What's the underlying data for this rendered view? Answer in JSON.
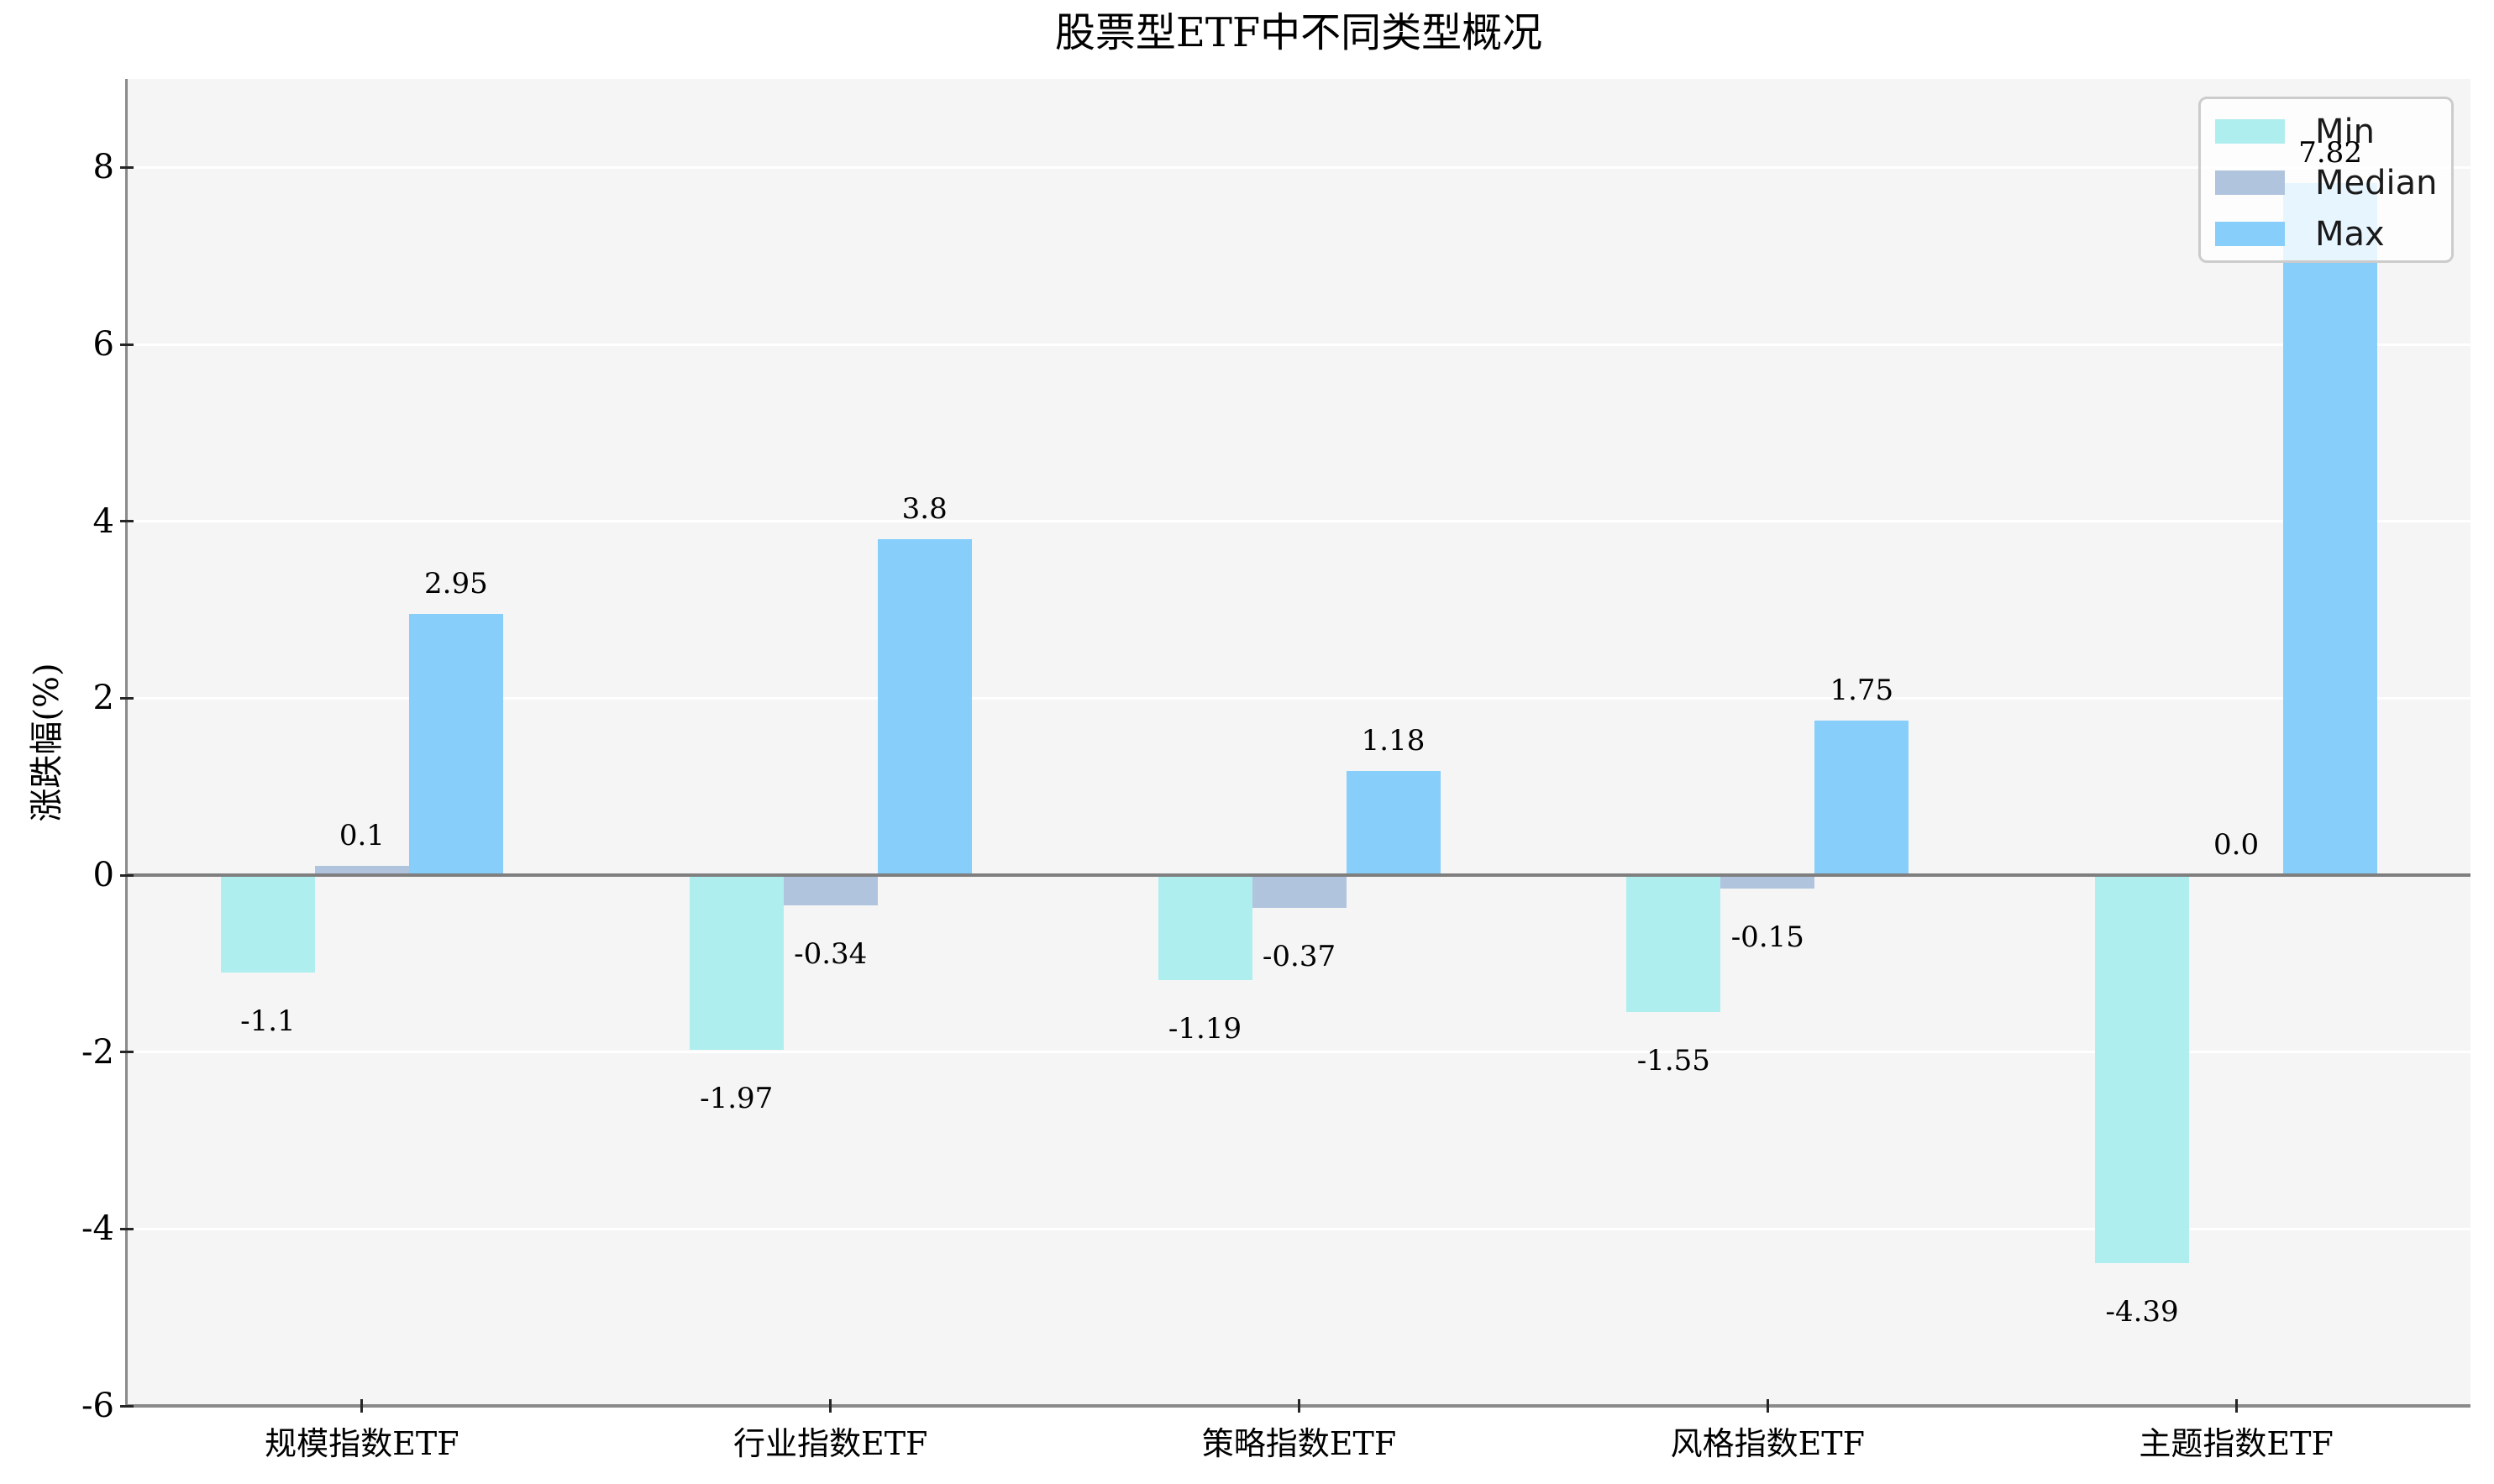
{
  "title": "股票型ETF中不同类型概况",
  "y_axis": {
    "label": "涨跌幅(%)",
    "tick_labels": [
      "8",
      "6",
      "4",
      "2",
      "0",
      "-2",
      "-4",
      "-6"
    ]
  },
  "legend": {
    "items": [
      {
        "label": "Min",
        "color": "#AFEEEE"
      },
      {
        "label": "Median",
        "color": "#B0C4DE"
      },
      {
        "label": "Max",
        "color": "#87CEFA"
      }
    ]
  },
  "colors": {
    "plot_background": "#F5F5F5",
    "gridline": "#FFFFFF",
    "zero_line": "#7F7F7F",
    "spine": "#8A8A8A",
    "tick_mark": "#262626",
    "text": "#000000",
    "legend_border": "#CCCCCC",
    "legend_background": "rgba(255,255,255,0.8)"
  },
  "chart_data": {
    "type": "bar",
    "categories": [
      "规模指数ETF",
      "行业指数ETF",
      "策略指数ETF",
      "风格指数ETF",
      "主题指数ETF"
    ],
    "series": [
      {
        "name": "Min",
        "color": "#AFEEEE",
        "values": [
          -1.1,
          -1.97,
          -1.19,
          -1.55,
          -4.39
        ],
        "labels": [
          "-1.1",
          "-1.97",
          "-1.19",
          "-1.55",
          "-4.39"
        ]
      },
      {
        "name": "Median",
        "color": "#B0C4DE",
        "values": [
          0.1,
          -0.34,
          -0.37,
          -0.15,
          0.0
        ],
        "labels": [
          "0.1",
          "-0.34",
          "-0.37",
          "-0.15",
          "0.0"
        ]
      },
      {
        "name": "Max",
        "color": "#87CEFA",
        "values": [
          2.95,
          3.8,
          1.18,
          1.75,
          7.82
        ],
        "labels": [
          "2.95",
          "3.8",
          "1.18",
          "1.75",
          "7.82"
        ]
      }
    ],
    "title": "股票型ETF中不同类型概况",
    "xlabel": "",
    "ylabel": "涨跌幅(%)",
    "ylim": [
      -6,
      9
    ],
    "y_ticks": [
      8,
      6,
      4,
      2,
      0,
      -2,
      -4,
      -6
    ],
    "grid": true,
    "legend_position": "upper right"
  }
}
